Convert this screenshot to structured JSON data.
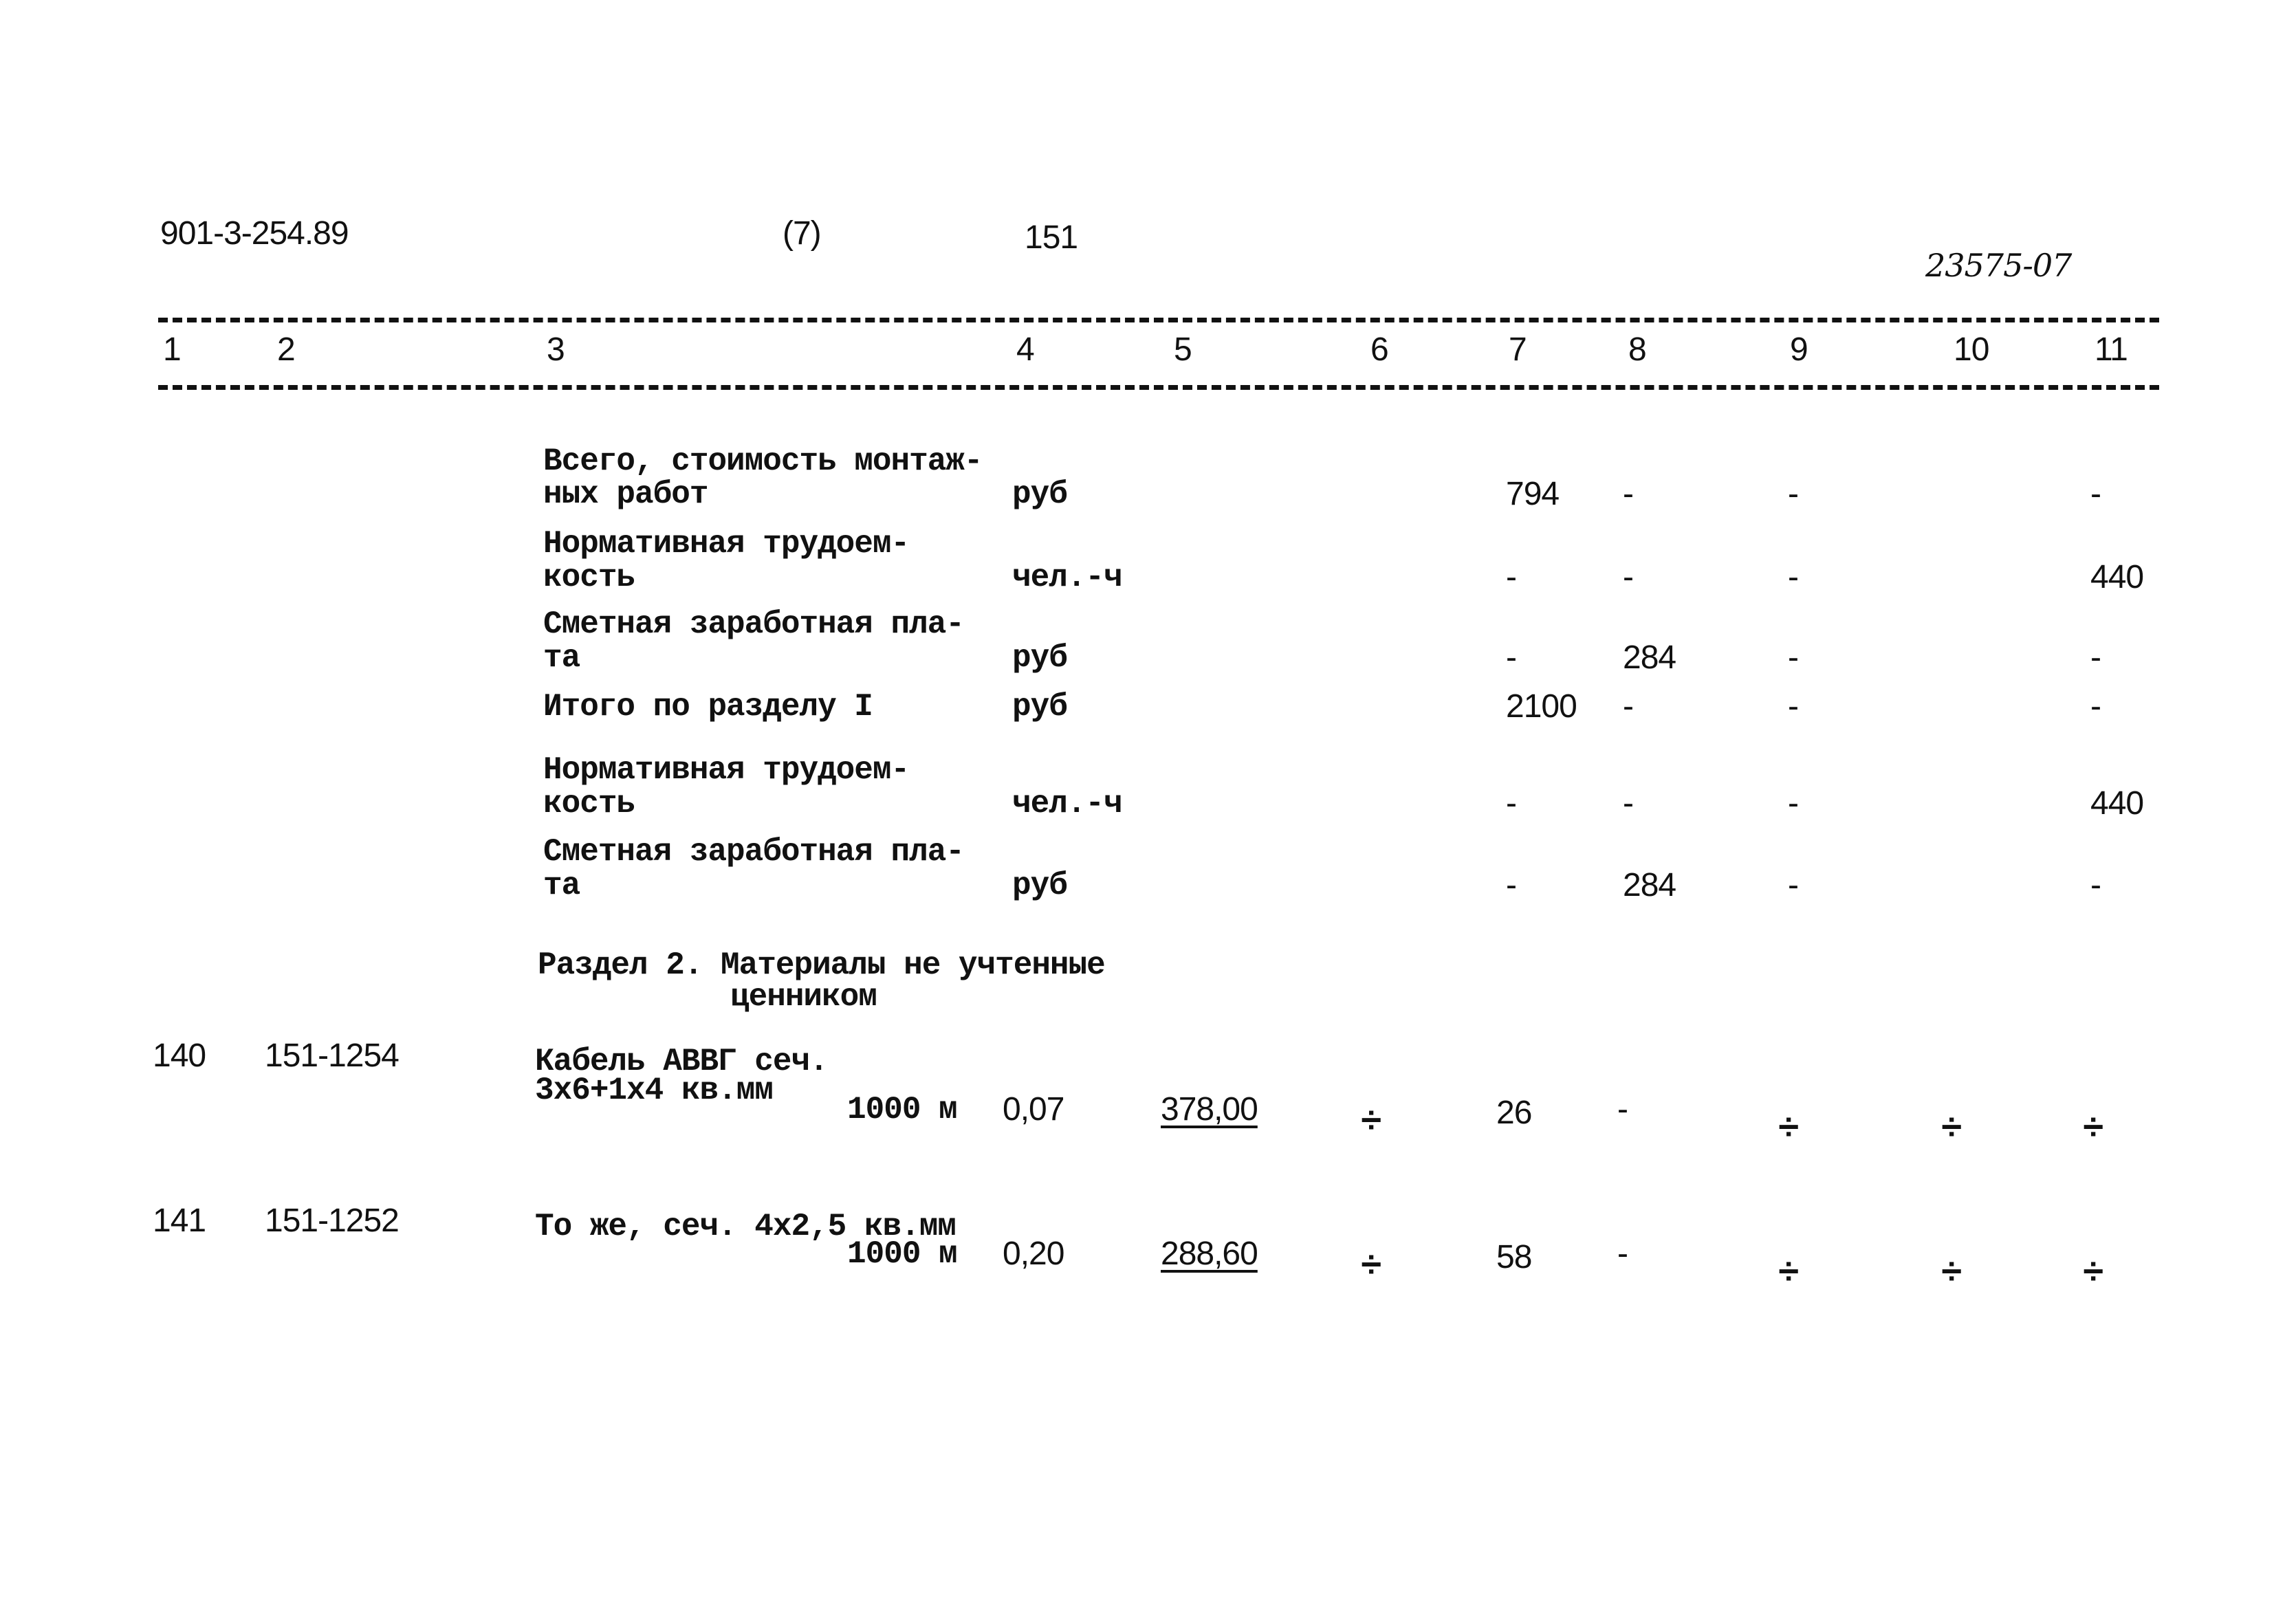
{
  "header": {
    "doc_code": "901-3-254.89",
    "sheet": "(7)",
    "page": "151",
    "inventory": "23575-07"
  },
  "columns": [
    "1",
    "2",
    "3",
    "4",
    "5",
    "6",
    "7",
    "8",
    "9",
    "10",
    "11"
  ],
  "summary_rows": [
    {
      "text": [
        "Всего, стоимость монтаж-",
        "ных работ"
      ],
      "unit": "руб",
      "c7": "794",
      "c8": "-",
      "c9": "-",
      "c11": "-"
    },
    {
      "text": [
        "Нормативная трудоем-",
        "кость"
      ],
      "unit": "чел.-ч",
      "c7": "-",
      "c8": "-",
      "c9": "-",
      "c11": "440"
    },
    {
      "text": [
        "Сметная заработная пла-",
        "та"
      ],
      "unit": "руб",
      "c7": "-",
      "c8": "284",
      "c9": "-",
      "c11": "-"
    },
    {
      "text": [
        "Итого по разделу I"
      ],
      "unit": "руб",
      "c7": "2100",
      "c8": "-",
      "c9": "-",
      "c11": "-"
    },
    {
      "text": [
        "Нормативная трудоем-",
        "кость"
      ],
      "unit": "чел.-ч",
      "c7": "-",
      "c8": "-",
      "c9": "-",
      "c11": "440"
    },
    {
      "text": [
        "Сметная заработная пла-",
        "та"
      ],
      "unit": "руб",
      "c7": "-",
      "c8": "284",
      "c9": "-",
      "c11": "-"
    }
  ],
  "section2": {
    "title": [
      "Раздел 2. Материалы не учтенные",
      "ценником"
    ]
  },
  "items": [
    {
      "num": "140",
      "code": "151-1254",
      "text": [
        "Кабель АВВГ сеч.",
        "3х6+1х4 кв.мм"
      ],
      "unit": "1000 м",
      "qty": "0,07",
      "price": "378,00",
      "c6": "÷",
      "c7": "26",
      "c8": "-",
      "c9": "÷",
      "c10": "÷",
      "c11": "÷"
    },
    {
      "num": "141",
      "code": "151-1252",
      "text": [
        "То же, сеч. 4х2,5 кв.мм"
      ],
      "unit": "1000 м",
      "qty": "0,20",
      "price": "288,60",
      "c6": "÷",
      "c7": "58",
      "c8": "-",
      "c9": "÷",
      "c10": "÷",
      "c11": "÷"
    }
  ]
}
